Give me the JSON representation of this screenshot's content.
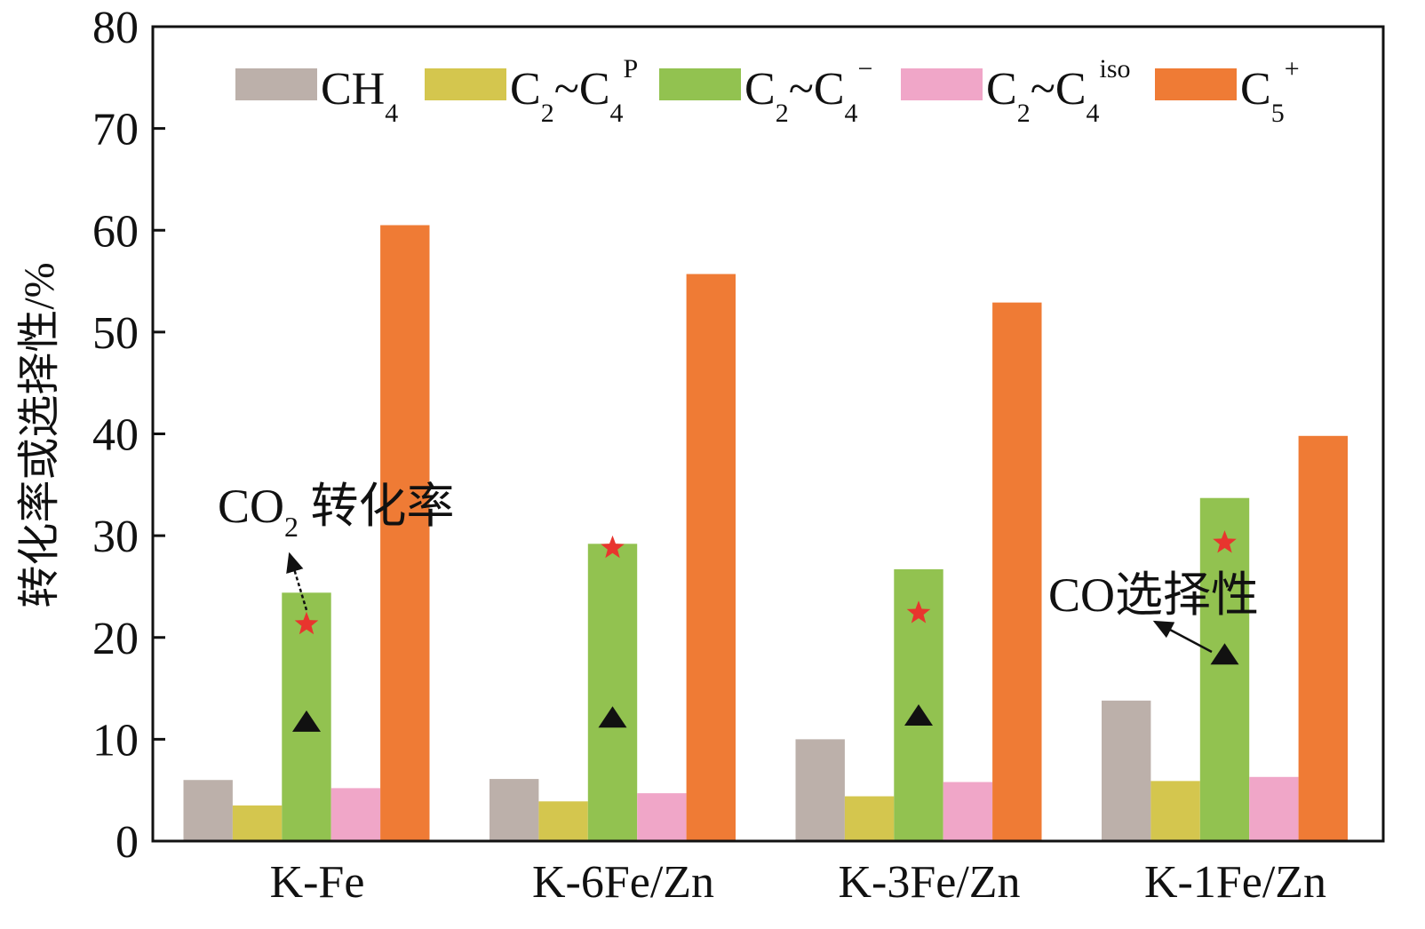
{
  "chart_data": {
    "type": "bar",
    "title": "",
    "xlabel": "",
    "ylabel": "转化率或选择性/%",
    "ylim": [
      0,
      80
    ],
    "yticks": [
      0,
      10,
      20,
      30,
      40,
      50,
      60,
      70,
      80
    ],
    "categories": [
      "K-Fe",
      "K-6Fe/Zn",
      "K-3Fe/Zn",
      "K-1Fe/Zn"
    ],
    "legend_placement": "top",
    "grid": false,
    "series": [
      {
        "name": "CH4",
        "label": {
          "main": "CH",
          "sub": "4",
          "sup": ""
        },
        "color": "#bcb0aa",
        "values": [
          6.0,
          6.1,
          10.0,
          13.8
        ]
      },
      {
        "name": "C2~C4P",
        "label": {
          "main": "C",
          "sub": "2",
          "mid": "~C",
          "sub2": "4",
          "sup": "P"
        },
        "color": "#d4c64e",
        "values": [
          3.5,
          3.9,
          4.4,
          5.9
        ]
      },
      {
        "name": "C2~C4=",
        "label": {
          "main": "C",
          "sub": "2",
          "mid": "~C",
          "sub2": "4",
          "sup": "−"
        },
        "color": "#92c250",
        "values": [
          24.4,
          29.2,
          26.7,
          33.7
        ]
      },
      {
        "name": "C2~C4iso",
        "label": {
          "main": "C",
          "sub": "2",
          "mid": "~C",
          "sub2": "4",
          "sup": "iso"
        },
        "color": "#f0a6c8",
        "values": [
          5.2,
          4.7,
          5.8,
          6.3
        ]
      },
      {
        "name": "C5+",
        "label": {
          "main": "C",
          "sub": "5",
          "sup": "+"
        },
        "color": "#ef7b35",
        "values": [
          60.5,
          55.7,
          52.9,
          39.8
        ]
      }
    ],
    "markers": [
      {
        "name": "CO2 conversion",
        "shape": "star",
        "color": "#e8352e",
        "values": [
          21.3,
          28.8,
          22.4,
          29.3
        ]
      },
      {
        "name": "CO selectivity",
        "shape": "triangle",
        "color": "#111111",
        "values": [
          11.7,
          12.1,
          12.3,
          18.3
        ]
      }
    ],
    "annotations": [
      {
        "text_main": "CO",
        "text_sub": "2",
        "text_rest": " 转化率",
        "target": "star",
        "category": "K-Fe"
      },
      {
        "text_main": "CO选择性",
        "target": "triangle",
        "category": "K-1Fe/Zn"
      }
    ]
  }
}
